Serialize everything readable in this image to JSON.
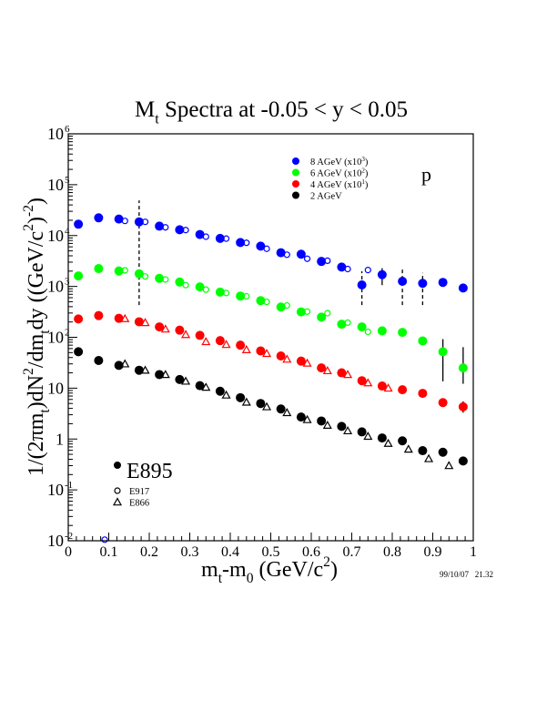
{
  "chart_data": {
    "type": "scatter",
    "title": "M_t Spectra at -0.05 < y < 0.05",
    "title_parts": [
      {
        "t": "M"
      },
      {
        "t": "t",
        "sub": true
      },
      {
        "t": " Spectra at -0.05 < y < 0.05"
      }
    ],
    "xlabel": "m_t-m_0 (GeV/c^2)",
    "xlabel_parts": [
      {
        "t": "m"
      },
      {
        "t": "t",
        "sub": true
      },
      {
        "t": "-m"
      },
      {
        "t": "0",
        "sub": true
      },
      {
        "t": " (GeV/c"
      },
      {
        "t": "2",
        "sup": true
      },
      {
        "t": ")"
      }
    ],
    "ylabel": "1/(2πm_t)dN^2/dm_t dy ((GeV/c^2)^-2)",
    "ylabel_parts": [
      {
        "t": "1/(2πm"
      },
      {
        "t": "t",
        "sub": true
      },
      {
        "t": ")dN"
      },
      {
        "t": "2",
        "sup": true
      },
      {
        "t": "/dm"
      },
      {
        "t": "t",
        "sub": true
      },
      {
        "t": "dy ((GeV/c"
      },
      {
        "t": "2",
        "sup": true
      },
      {
        "t": ")"
      },
      {
        "t": "-2",
        "sup": true
      },
      {
        "t": ")"
      }
    ],
    "xlim": [
      0,
      1
    ],
    "ylim": [
      0.01,
      1000000
    ],
    "yscale": "log",
    "grid": false,
    "xticks": [
      0,
      0.1,
      0.2,
      0.3,
      0.4,
      0.5,
      0.6,
      0.7,
      0.8,
      0.9,
      1
    ],
    "xtick_labels": [
      "0",
      "0.1",
      "0.2",
      "0.3",
      "0.4",
      "0.5",
      "0.6",
      "0.7",
      "0.8",
      "0.9",
      "1"
    ],
    "yticks": [
      0.01,
      0.1,
      1,
      10,
      100,
      1000,
      10000,
      100000,
      1000000
    ],
    "ytick_labels": [
      {
        "base": "10",
        "exp": "-2"
      },
      {
        "base": "10",
        "exp": "-1"
      },
      {
        "base": "1"
      },
      {
        "base": "10"
      },
      {
        "base": "10",
        "exp": "2"
      },
      {
        "base": "10",
        "exp": "3"
      },
      {
        "base": "10",
        "exp": "4"
      },
      {
        "base": "10",
        "exp": "5"
      },
      {
        "base": "10",
        "exp": "6"
      }
    ],
    "annotation": "p",
    "timestamp": "99/10/07   21.32",
    "legend_energy": [
      {
        "label": "8 AGeV (x10",
        "sup": "3",
        "close": ")",
        "color": "#0000ff"
      },
      {
        "label": "6 AGeV (x10",
        "sup": "2",
        "close": ")",
        "color": "#00ff00"
      },
      {
        "label": "4 AGeV (x10",
        "sup": "1",
        "close": ")",
        "color": "#ff0000"
      },
      {
        "label": "2 AGeV",
        "sup": "",
        "close": "",
        "color": "#000000"
      }
    ],
    "legend_experiment": [
      {
        "label": "E895",
        "marker": "filled-circle"
      },
      {
        "label": "E917",
        "marker": "open-circle"
      },
      {
        "label": "E866",
        "marker": "open-triangle"
      }
    ],
    "legend_placement": "top-right (energies), bottom-left (experiments)",
    "series": [
      {
        "name": "E895 8 AGeV (x10^3)",
        "experiment": "E895",
        "marker": "filled-circle",
        "color": "#0000ff",
        "x": [
          0.025,
          0.075,
          0.125,
          0.175,
          0.225,
          0.275,
          0.325,
          0.375,
          0.425,
          0.475,
          0.525,
          0.575,
          0.625,
          0.675,
          0.725,
          0.775,
          0.825,
          0.875,
          0.925,
          0.975
        ],
        "y": [
          16700,
          22300,
          21100,
          18600,
          15300,
          13000,
          10500,
          8800,
          7300,
          6200,
          4600,
          4300,
          3100,
          2400,
          1070,
          1700,
          1260,
          1150,
          1200,
          930
        ]
      },
      {
        "name": "E895 6 AGeV (x10^2)",
        "experiment": "E895",
        "marker": "filled-circle",
        "color": "#00ff00",
        "x": [
          0.025,
          0.075,
          0.125,
          0.175,
          0.225,
          0.275,
          0.325,
          0.375,
          0.425,
          0.475,
          0.525,
          0.575,
          0.625,
          0.675,
          0.725,
          0.775,
          0.825,
          0.875,
          0.925,
          0.975
        ],
        "y": [
          1610,
          2240,
          2010,
          1770,
          1440,
          1220,
          980,
          773,
          647,
          526,
          394,
          316,
          249,
          181,
          160,
          134,
          125,
          85,
          52,
          25
        ]
      },
      {
        "name": "E895 4 AGeV (x10^1)",
        "experiment": "E895",
        "marker": "filled-circle",
        "color": "#ff0000",
        "x": [
          0.025,
          0.075,
          0.125,
          0.175,
          0.225,
          0.275,
          0.325,
          0.375,
          0.425,
          0.475,
          0.525,
          0.575,
          0.625,
          0.675,
          0.725,
          0.775,
          0.825,
          0.875,
          0.925,
          0.975
        ],
        "y": [
          229,
          267,
          236,
          202,
          160,
          138,
          109,
          86,
          70,
          54,
          43,
          34,
          25,
          20,
          14,
          11,
          9.3,
          7.9,
          5.2,
          4.3
        ]
      },
      {
        "name": "E895 2 AGeV",
        "experiment": "E895",
        "marker": "filled-circle",
        "color": "#000000",
        "x": [
          0.025,
          0.075,
          0.125,
          0.175,
          0.225,
          0.275,
          0.325,
          0.375,
          0.425,
          0.475,
          0.525,
          0.575,
          0.625,
          0.675,
          0.725,
          0.775,
          0.825,
          0.875,
          0.925,
          0.975
        ],
        "y": [
          52,
          35,
          28,
          22.5,
          18.5,
          14.8,
          11.2,
          8.7,
          6.5,
          5.0,
          3.9,
          2.7,
          2.26,
          1.77,
          1.38,
          1.05,
          0.92,
          0.59,
          0.55,
          0.37
        ]
      },
      {
        "name": "E917 8 AGeV (x10^3)",
        "experiment": "E917",
        "marker": "open-circle",
        "color": "#0000ff",
        "x": [
          0.09,
          0.14,
          0.19,
          0.24,
          0.29,
          0.34,
          0.39,
          0.44,
          0.49,
          0.54,
          0.59,
          0.64,
          0.69,
          0.74
        ],
        "y": [
          0.0105,
          19400,
          18600,
          14500,
          12800,
          9500,
          8700,
          7200,
          5500,
          4200,
          3500,
          3200,
          2200,
          2100
        ]
      },
      {
        "name": "E917 6 AGeV (x10^2)",
        "experiment": "E917",
        "marker": "open-circle",
        "color": "#00ff00",
        "x": [
          0.14,
          0.19,
          0.24,
          0.29,
          0.34,
          0.39,
          0.44,
          0.49,
          0.54,
          0.59,
          0.64,
          0.69,
          0.74
        ],
        "y": [
          2070,
          1570,
          1370,
          1060,
          865,
          742,
          639,
          498,
          422,
          320,
          298,
          194,
          128
        ]
      },
      {
        "name": "E866 4 AGeV (x10^1)",
        "experiment": "E866",
        "marker": "open-triangle",
        "color": "#ff0000",
        "x": [
          0.14,
          0.19,
          0.24,
          0.29,
          0.34,
          0.39,
          0.44,
          0.49,
          0.54,
          0.59,
          0.64,
          0.69,
          0.74,
          0.79
        ],
        "y": [
          232,
          194,
          145,
          113,
          82,
          72,
          57,
          48,
          37,
          31,
          22,
          18.5,
          12.7,
          10
        ]
      },
      {
        "name": "E866 2 AGeV",
        "experiment": "E866",
        "marker": "open-triangle",
        "color": "#000000",
        "x": [
          0.14,
          0.19,
          0.24,
          0.29,
          0.34,
          0.39,
          0.44,
          0.49,
          0.54,
          0.59,
          0.64,
          0.69,
          0.74,
          0.79,
          0.84,
          0.89,
          0.94
        ],
        "y": [
          30,
          22.5,
          18.5,
          13.7,
          10.4,
          7.3,
          5.3,
          4.3,
          3.3,
          2.4,
          1.86,
          1.45,
          1.13,
          0.82,
          0.63,
          0.41,
          0.3
        ]
      }
    ],
    "error_bars": [
      {
        "series": "E895 8 AGeV (x10^3)",
        "x": 0.175,
        "low": 430,
        "high": 49000,
        "style": "dashed"
      },
      {
        "series": "E895 8 AGeV (x10^3)",
        "x": 0.725,
        "low": 430,
        "high": 1980,
        "style": "dashed"
      },
      {
        "series": "E895 8 AGeV (x10^3)",
        "x": 0.775,
        "low": 1060,
        "high": 2280,
        "style": "solid"
      },
      {
        "series": "E895 8 AGeV (x10^3)",
        "x": 0.825,
        "low": 430,
        "high": 2150,
        "style": "dashed"
      },
      {
        "series": "E895 8 AGeV (x10^3)",
        "x": 0.875,
        "low": 430,
        "high": 1850,
        "style": "dashed"
      },
      {
        "series": "E895 6 AGeV (x10^2)",
        "x": 0.925,
        "low": 13.6,
        "high": 92,
        "style": "solid"
      },
      {
        "series": "E895 6 AGeV (x10^2)",
        "x": 0.975,
        "low": 12.2,
        "high": 64,
        "style": "solid"
      },
      {
        "series": "E895 4 AGeV (x10^1)",
        "x": 0.975,
        "low": 3.3,
        "high": 5.5,
        "style": "solid"
      }
    ]
  }
}
